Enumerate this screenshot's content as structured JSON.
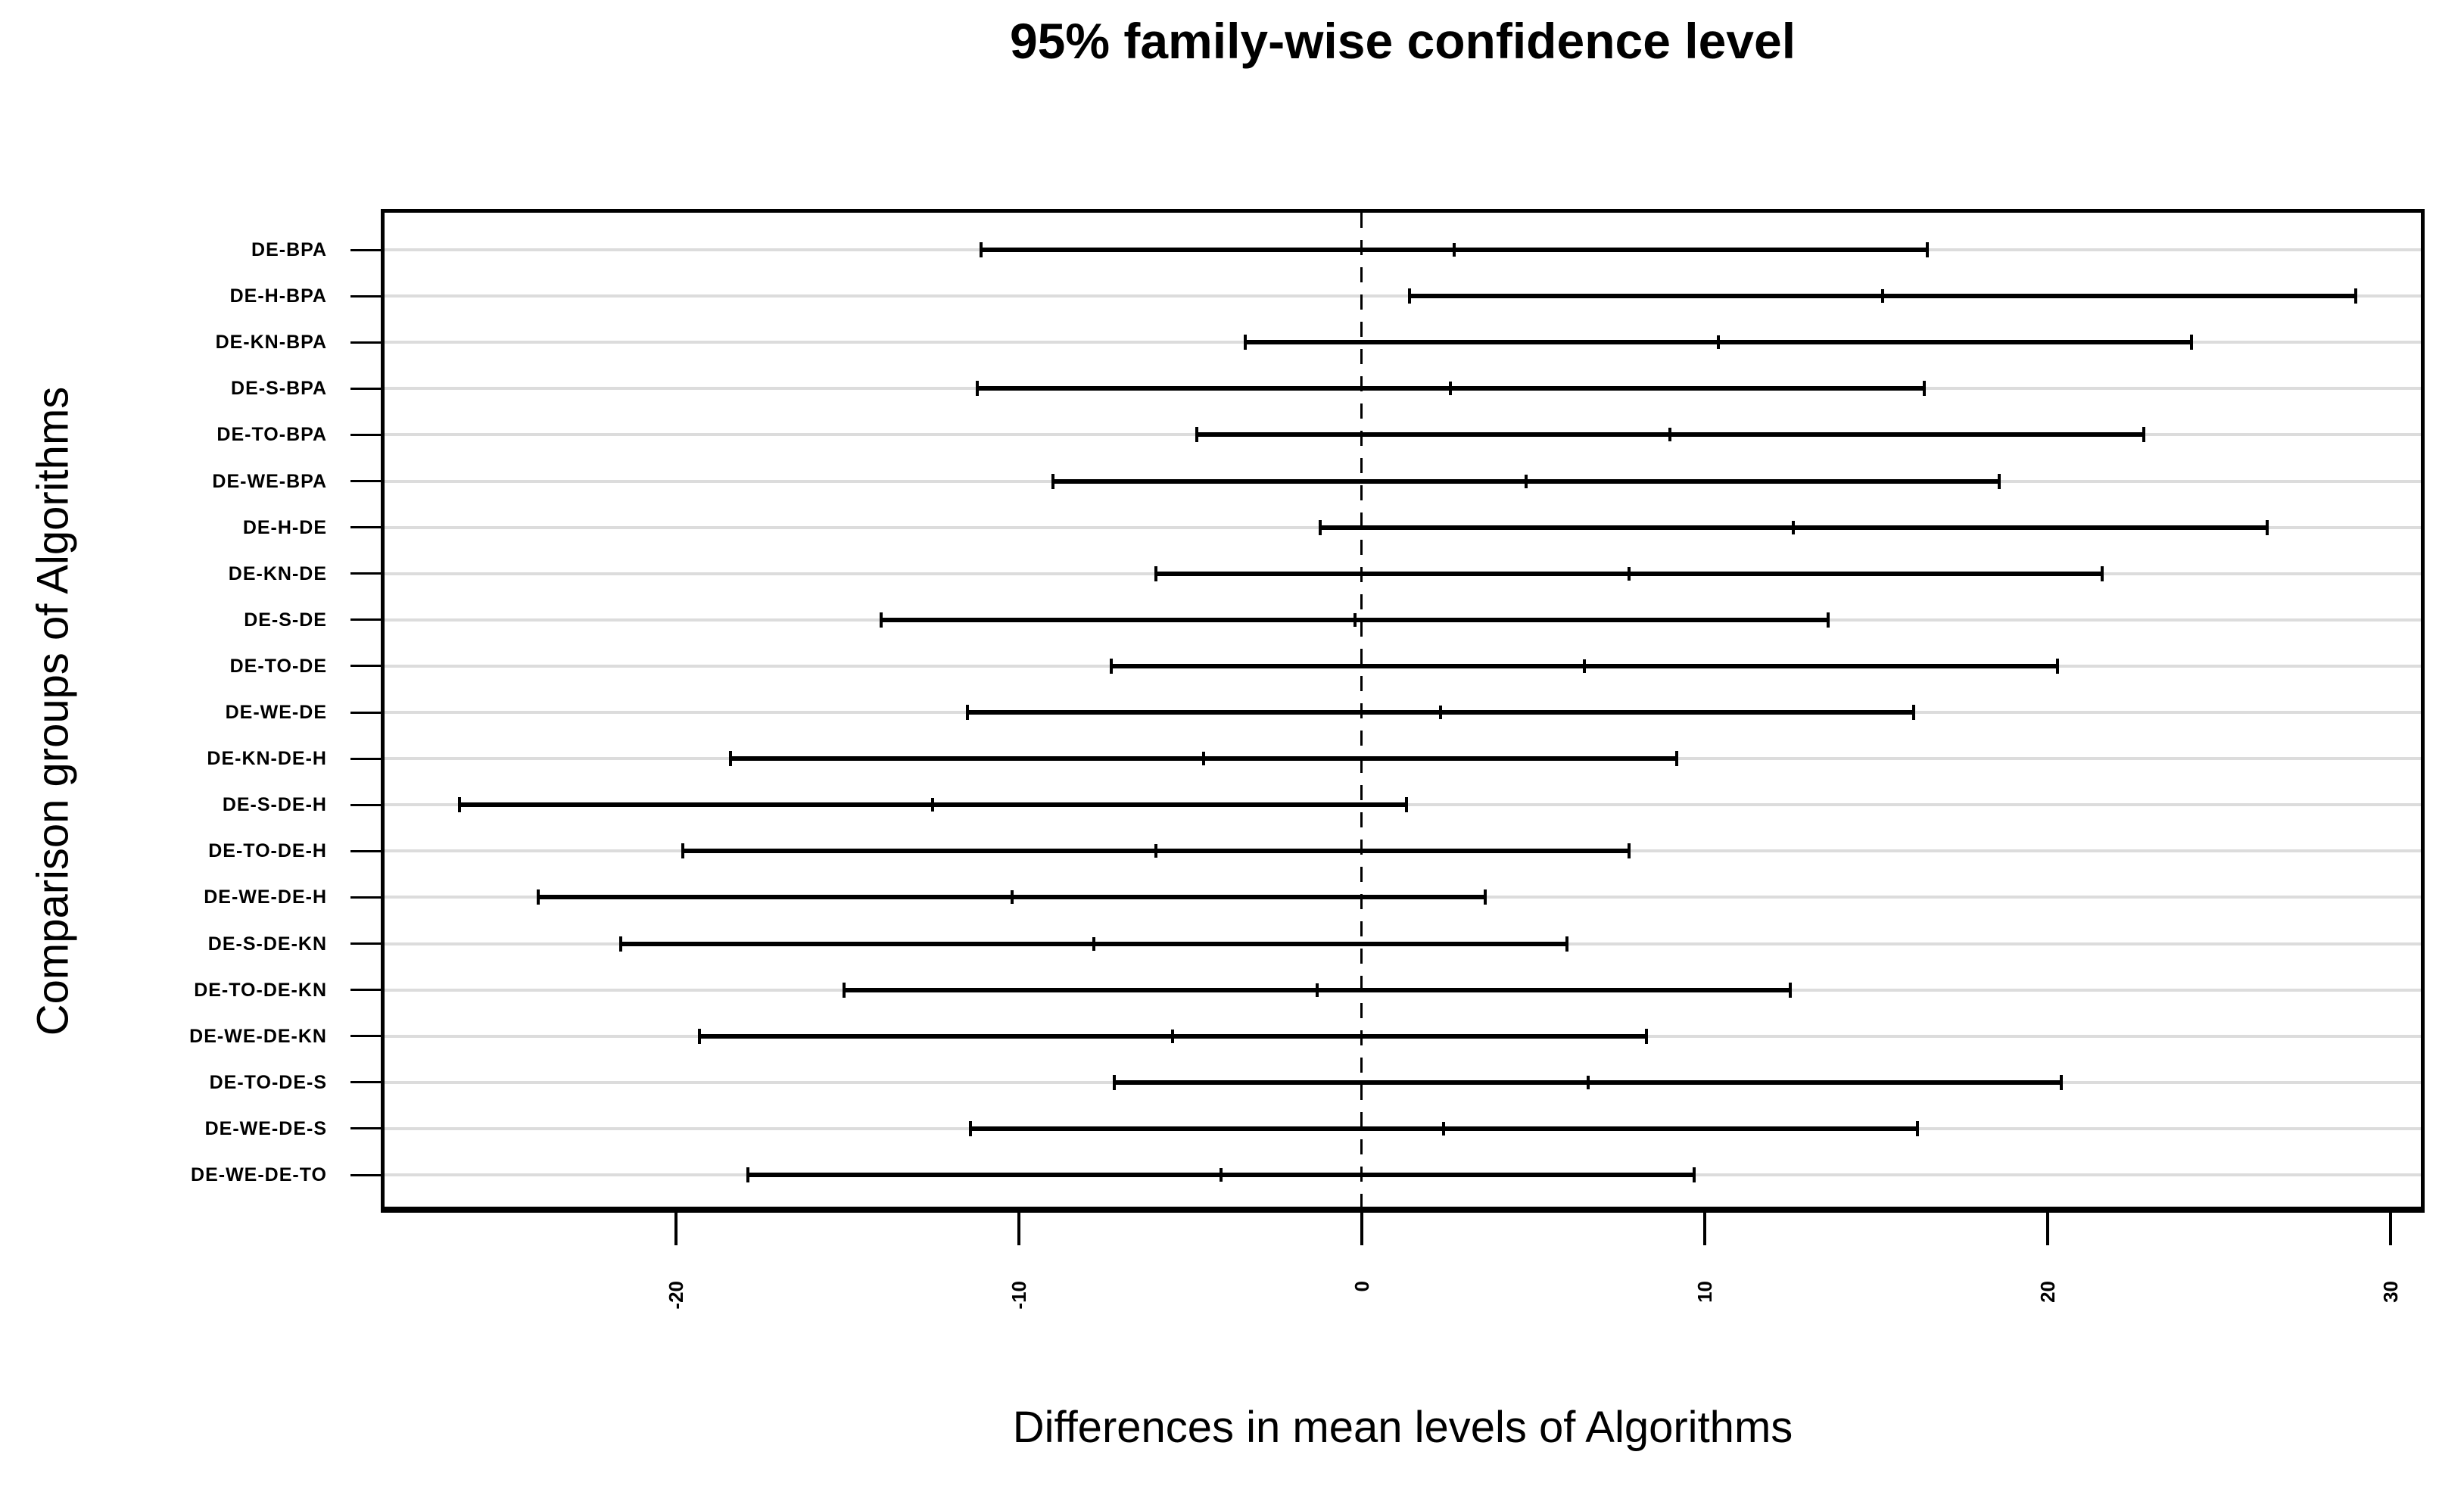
{
  "chart_data": {
    "type": "scatter",
    "subtype": "horizontal-confidence-intervals",
    "title": "95% family-wise confidence level",
    "xlabel": "Differences in mean levels of Algorithms",
    "ylabel": "Comparison groups of Algorithms",
    "xlim": [
      -28.6,
      31.0
    ],
    "xticks": [
      -20,
      -10,
      0,
      10,
      20,
      30
    ],
    "xtick_labels": [
      "-20",
      "-10",
      "0",
      "10",
      "20",
      "30"
    ],
    "zero_line": {
      "x": 0,
      "style": "dashed"
    },
    "grid": "horizontal-gray-rows",
    "legend": "none",
    "categories": [
      "DE-BPA",
      "DE-H-BPA",
      "DE-KN-BPA",
      "DE-S-BPA",
      "DE-TO-BPA",
      "DE-WE-BPA",
      "DE-H-DE",
      "DE-KN-DE",
      "DE-S-DE",
      "DE-TO-DE",
      "DE-WE-DE",
      "DE-KN-DE-H",
      "DE-S-DE-H",
      "DE-TO-DE-H",
      "DE-WE-DE-H",
      "DE-S-DE-KN",
      "DE-TO-DE-KN",
      "DE-WE-DE-KN",
      "DE-TO-DE-S",
      "DE-WE-DE-S",
      "DE-WE-DE-TO"
    ],
    "points": [
      {
        "label": "DE-BPA",
        "lower": -11.1,
        "center": 2.7,
        "upper": 16.5
      },
      {
        "label": "DE-H-BPA",
        "lower": 1.4,
        "center": 15.2,
        "upper": 29.0
      },
      {
        "label": "DE-KN-BPA",
        "lower": -3.4,
        "center": 10.4,
        "upper": 24.2
      },
      {
        "label": "DE-S-BPA",
        "lower": -11.2,
        "center": 2.6,
        "upper": 16.4
      },
      {
        "label": "DE-TO-BPA",
        "lower": -4.8,
        "center": 9.0,
        "upper": 22.8
      },
      {
        "label": "DE-WE-BPA",
        "lower": -9.0,
        "center": 4.8,
        "upper": 18.6
      },
      {
        "label": "DE-H-DE",
        "lower": -1.2,
        "center": 12.6,
        "upper": 26.4
      },
      {
        "label": "DE-KN-DE",
        "lower": -6.0,
        "center": 7.8,
        "upper": 21.6
      },
      {
        "label": "DE-S-DE",
        "lower": -14.0,
        "center": -0.2,
        "upper": 13.6
      },
      {
        "label": "DE-TO-DE",
        "lower": -7.3,
        "center": 6.5,
        "upper": 20.3
      },
      {
        "label": "DE-WE-DE",
        "lower": -11.5,
        "center": 2.3,
        "upper": 16.1
      },
      {
        "label": "DE-KN-DE-H",
        "lower": -18.4,
        "center": -4.6,
        "upper": 9.2
      },
      {
        "label": "DE-S-DE-H",
        "lower": -26.3,
        "center": -12.5,
        "upper": 1.3
      },
      {
        "label": "DE-TO-DE-H",
        "lower": -19.8,
        "center": -6.0,
        "upper": 7.8
      },
      {
        "label": "DE-WE-DE-H",
        "lower": -24.0,
        "center": -10.2,
        "upper": 3.6
      },
      {
        "label": "DE-S-DE-KN",
        "lower": -21.6,
        "center": -7.8,
        "upper": 6.0
      },
      {
        "label": "DE-TO-DE-KN",
        "lower": -15.1,
        "center": -1.3,
        "upper": 12.5
      },
      {
        "label": "DE-WE-DE-KN",
        "lower": -19.3,
        "center": -5.5,
        "upper": 8.3
      },
      {
        "label": "DE-TO-DE-S",
        "lower": -7.2,
        "center": 6.6,
        "upper": 20.4
      },
      {
        "label": "DE-WE-DE-S",
        "lower": -11.4,
        "center": 2.4,
        "upper": 16.2
      },
      {
        "label": "DE-WE-DE-TO",
        "lower": -17.9,
        "center": -4.1,
        "upper": 9.7
      }
    ]
  },
  "colors": {
    "interval": "#000000",
    "gridline": "#dcdcdc",
    "background": "#ffffff",
    "text": "#000000"
  }
}
